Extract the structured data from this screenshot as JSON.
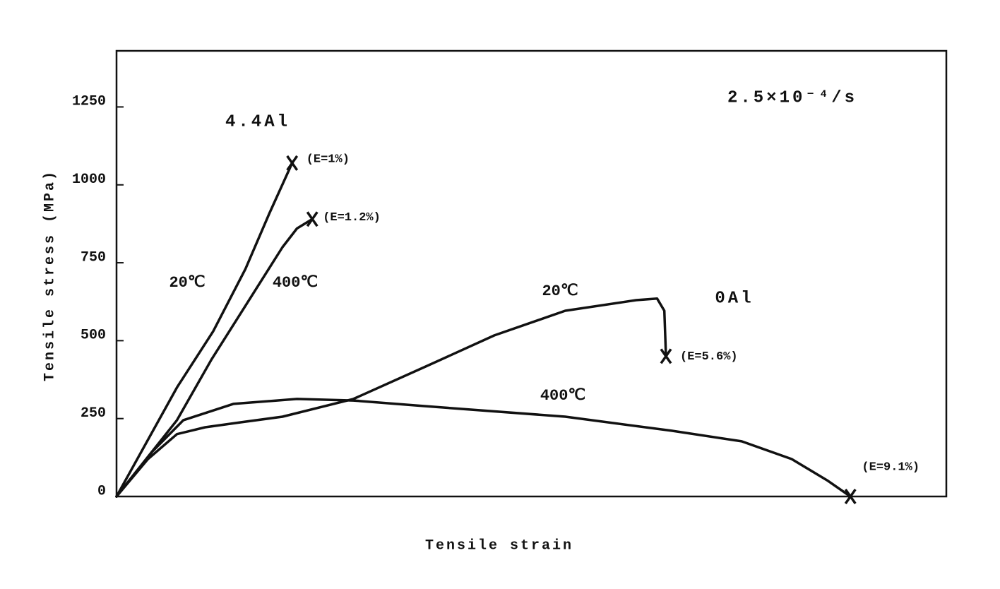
{
  "chart_data": {
    "type": "line",
    "x_label": "Tensile strain",
    "y_label": "Tensile stress (MPa)",
    "xlim": [
      0,
      10.3
    ],
    "ylim": [
      0,
      1430
    ],
    "yticks": [
      0,
      250,
      500,
      750,
      1000,
      1250
    ],
    "color": "#111111",
    "annotations": [
      "4.4Al",
      "0Al",
      "2.5×10⁻⁴/s"
    ],
    "series": [
      {
        "name": "20℃",
        "end_label": "(E=1%)",
        "x": [
          0,
          0.75,
          1.2,
          1.6,
          1.9,
          2.18
        ],
        "values": [
          0,
          350,
          530,
          730,
          910,
          1070
        ]
      },
      {
        "name": "400℃",
        "end_label": "(E=1.2%)",
        "x": [
          0,
          0.75,
          1.18,
          1.62,
          2.06,
          2.24,
          2.43
        ],
        "values": [
          0,
          245,
          440,
          620,
          800,
          860,
          890
        ]
      },
      {
        "name": "20℃",
        "end_label": "(E=5.6%)",
        "x": [
          0,
          0.39,
          0.75,
          1.1,
          1.54,
          2.06,
          2.94,
          3.82,
          4.69,
          5.57,
          6.45,
          6.71,
          6.8,
          6.82
        ],
        "values": [
          0,
          120,
          200,
          222,
          238,
          256,
          313,
          415,
          517,
          596,
          630,
          635,
          596,
          450
        ]
      },
      {
        "name": "400℃",
        "end_label": "(E=9.1%)",
        "x": [
          0,
          0.44,
          0.83,
          1.45,
          2.24,
          2.94,
          3.82,
          5.57,
          6.89,
          7.76,
          8.38,
          8.82,
          9.11
        ],
        "values": [
          0,
          143,
          245,
          297,
          313,
          308,
          290,
          256,
          211,
          177,
          120,
          52,
          0
        ]
      }
    ]
  }
}
